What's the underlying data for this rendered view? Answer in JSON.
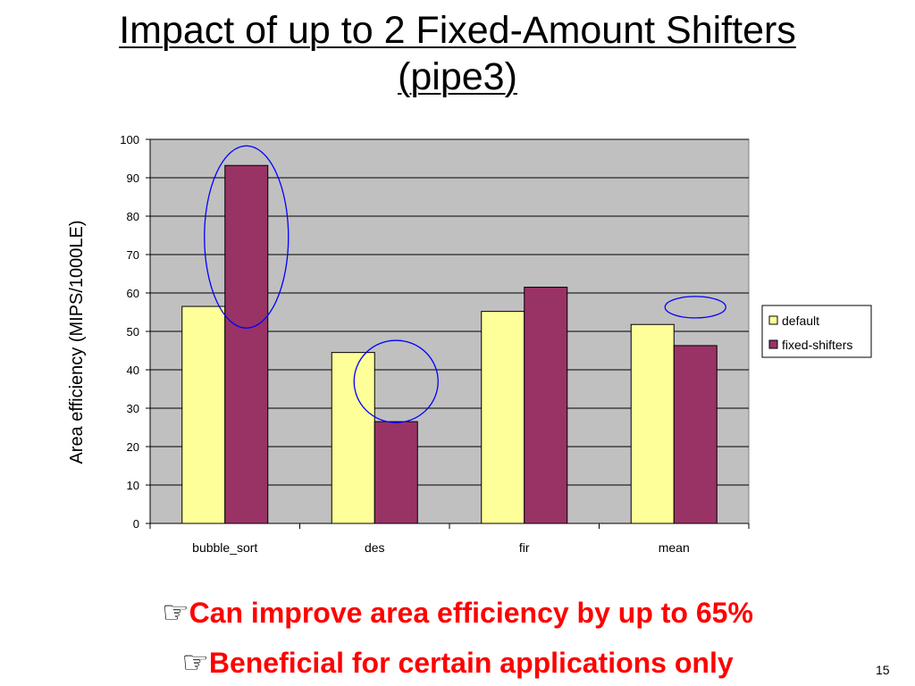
{
  "slide": {
    "title_line1": "Impact of up to 2 Fixed-Amount Shifters",
    "title_line2": "(pipe3)",
    "bullets": [
      "Can improve area efficiency by up to 65%",
      "Beneficial for certain applications only"
    ],
    "bullet_icon": "pointing-hand-icon",
    "slide_number": "15"
  },
  "chart_data": {
    "type": "bar",
    "title": "",
    "xlabel": "",
    "ylabel": "Area efficiency (MIPS/1000LE)",
    "categories": [
      "bubble_sort",
      "des",
      "fir",
      "mean"
    ],
    "series": [
      {
        "name": "default",
        "values": [
          56.5,
          44.5,
          55.2,
          51.8
        ],
        "color": "#ffff99"
      },
      {
        "name": "fixed-shifters",
        "values": [
          93.2,
          26.5,
          61.5,
          46.3
        ],
        "color": "#993366"
      }
    ],
    "ylim": [
      0,
      100
    ],
    "yticks": [
      0,
      10,
      20,
      30,
      40,
      50,
      60,
      70,
      80,
      90,
      100
    ],
    "grid": true,
    "plot_background": "#c0c0c0",
    "legend_position": "right",
    "highlight_color": "#0000ff",
    "highlights": [
      {
        "category": "bubble_sort",
        "series": "fixed-shifters"
      },
      {
        "category": "des",
        "series": "fixed-shifters"
      },
      {
        "category": "mean",
        "series": "fixed-shifters"
      }
    ]
  }
}
